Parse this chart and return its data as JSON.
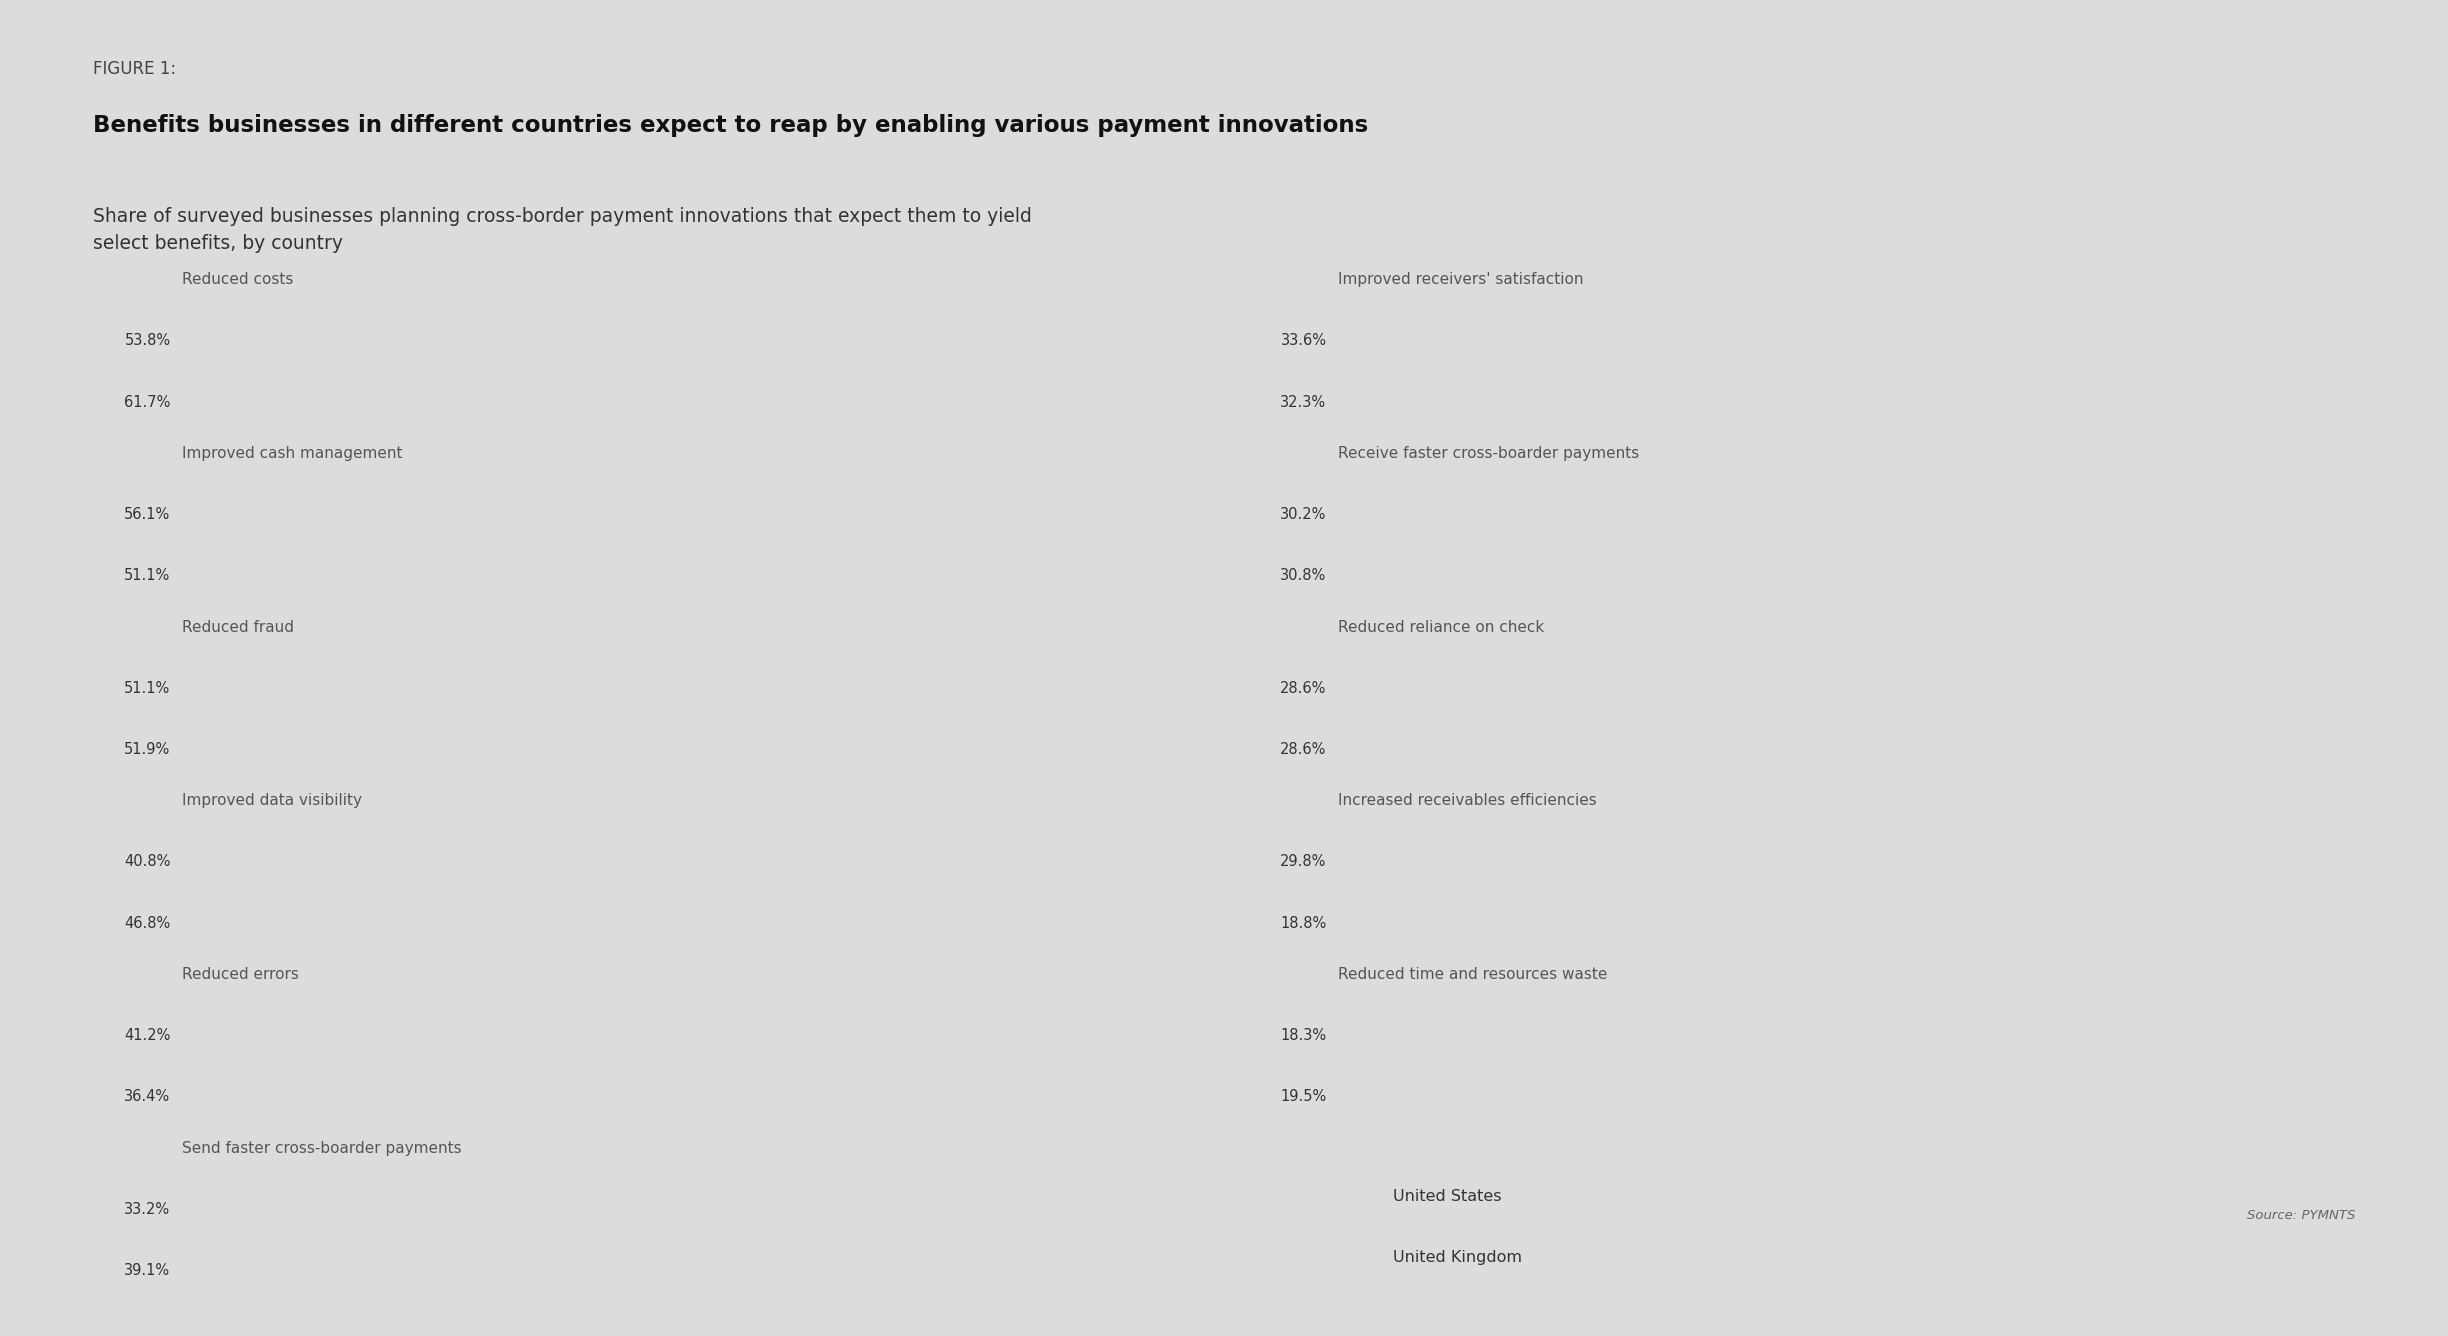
{
  "figure_label": "FIGURE 1:",
  "title": "Benefits businesses in different countries expect to reap by enabling various payment innovations",
  "subtitle": "Share of surveyed businesses planning cross-border payment innovations that expect them to yield\nselect benefits, by country",
  "source": "Source: PYMNTS",
  "background_color": "#dcdcdc",
  "bar_bg_color": "#ffffff",
  "us_color": "#4f8fc0",
  "uk_color": "#0d1f3c",
  "left_charts": [
    {
      "title": "Reduced costs",
      "us": 53.8,
      "uk": 61.7
    },
    {
      "title": "Improved cash management",
      "us": 56.1,
      "uk": 51.1
    },
    {
      "title": "Reduced fraud",
      "us": 51.1,
      "uk": 51.9
    },
    {
      "title": "Improved data visibility",
      "us": 40.8,
      "uk": 46.8
    },
    {
      "title": "Reduced errors",
      "us": 41.2,
      "uk": 36.4
    },
    {
      "title": "Send faster cross-boarder payments",
      "us": 33.2,
      "uk": 39.1
    }
  ],
  "right_charts": [
    {
      "title": "Improved receivers' satisfaction",
      "us": 33.6,
      "uk": 32.3
    },
    {
      "title": "Receive faster cross-boarder payments",
      "us": 30.2,
      "uk": 30.8
    },
    {
      "title": "Reduced reliance on check",
      "us": 28.6,
      "uk": 28.6
    },
    {
      "title": "Increased receivables efficiencies",
      "us": 29.8,
      "uk": 18.8
    },
    {
      "title": "Reduced time and resources waste",
      "us": 18.3,
      "uk": 19.5
    }
  ],
  "max_value": 70,
  "legend_us": "United States",
  "legend_uk": "United Kingdom"
}
